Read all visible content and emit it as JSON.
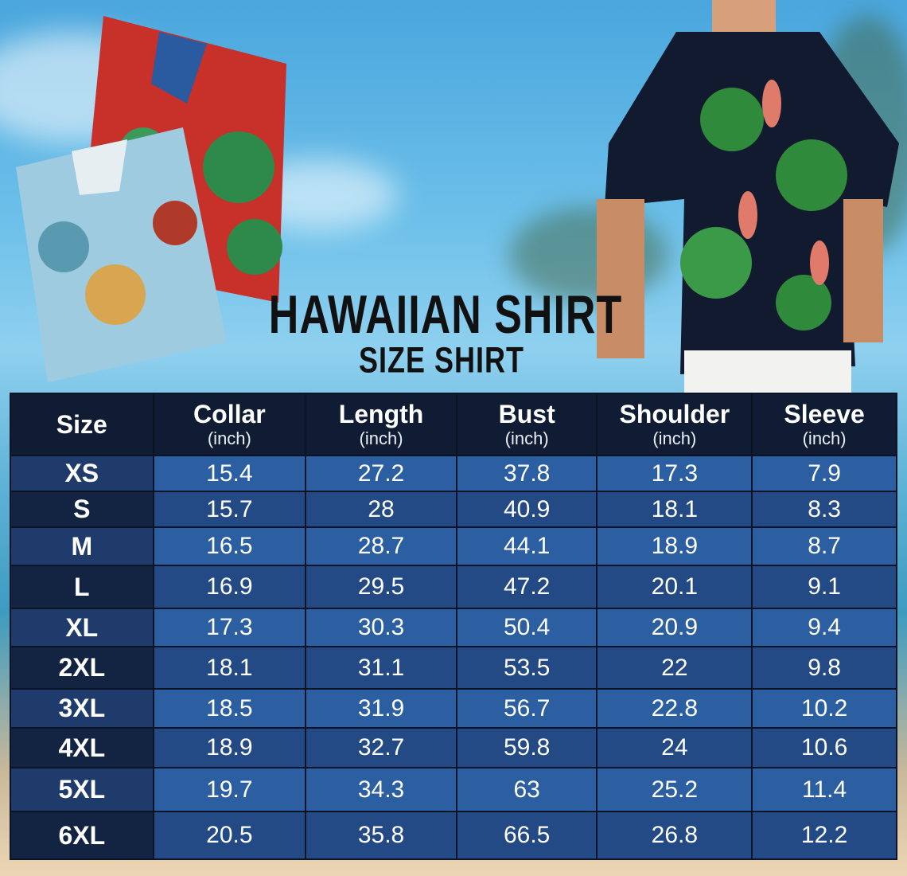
{
  "header": {
    "title": "HAWAIIAN SHIRT",
    "subtitle": "SIZE SHIRT"
  },
  "colors": {
    "header_bg": "#0f1c33",
    "row_light": "#2c5ea2",
    "row_dark": "#234a85",
    "size_col_dark": "#132443"
  },
  "images": [
    "folded-red-hawaiian-shirt",
    "folded-light-blue-hawaiian-shirt",
    "man-wearing-navy-flamingo-print-shirt"
  ],
  "table": {
    "columns": [
      {
        "label": "Size",
        "unit": ""
      },
      {
        "label": "Collar",
        "unit": "(inch)"
      },
      {
        "label": "Length",
        "unit": "(inch)"
      },
      {
        "label": "Bust",
        "unit": "(inch)"
      },
      {
        "label": "Shoulder",
        "unit": "(inch)"
      },
      {
        "label": "Sleeve",
        "unit": "(inch)"
      }
    ],
    "rows": [
      [
        "XS",
        "15.4",
        "27.2",
        "37.8",
        "17.3",
        "7.9"
      ],
      [
        "S",
        "15.7",
        "28",
        "40.9",
        "18.1",
        "8.3"
      ],
      [
        "M",
        "16.5",
        "28.7",
        "44.1",
        "18.9",
        "8.7"
      ],
      [
        "L",
        "16.9",
        "29.5",
        "47.2",
        "20.1",
        "9.1"
      ],
      [
        "XL",
        "17.3",
        "30.3",
        "50.4",
        "20.9",
        "9.4"
      ],
      [
        "2XL",
        "18.1",
        "31.1",
        "53.5",
        "22",
        "9.8"
      ],
      [
        "3XL",
        "18.5",
        "31.9",
        "56.7",
        "22.8",
        "10.2"
      ],
      [
        "4XL",
        "18.9",
        "32.7",
        "59.8",
        "24",
        "10.6"
      ],
      [
        "5XL",
        "19.7",
        "34.3",
        "63",
        "25.2",
        "11.4"
      ],
      [
        "6XL",
        "20.5",
        "35.8",
        "66.5",
        "26.8",
        "12.2"
      ]
    ]
  }
}
